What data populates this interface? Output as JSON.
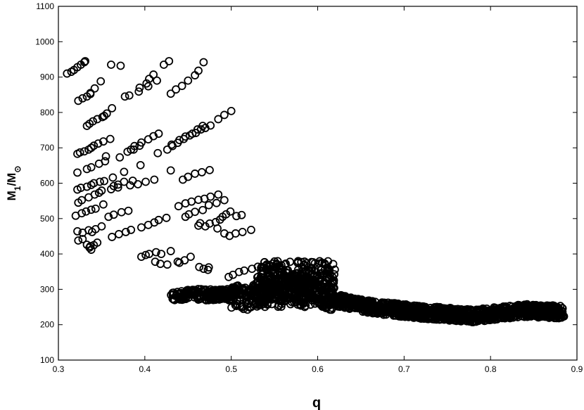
{
  "chart_data": {
    "type": "scatter",
    "title": "",
    "xlabel": "q",
    "ylabel": {
      "main": "M",
      "sub1": "1",
      "slash": "/M",
      "sub2": "⊙"
    },
    "xlim": [
      0.3,
      0.9
    ],
    "ylim": [
      100,
      1100
    ],
    "x_ticks": [
      0.3,
      0.4,
      0.5,
      0.6,
      0.7,
      0.8,
      0.9
    ],
    "x_tick_labels": [
      "0.3",
      "0.4",
      "0.5",
      "0.6",
      "0.7",
      "0.8",
      "0.9"
    ],
    "y_ticks": [
      100,
      200,
      300,
      400,
      500,
      600,
      700,
      800,
      900,
      1000,
      1100
    ],
    "y_tick_labels": [
      "100",
      "200",
      "300",
      "400",
      "500",
      "600",
      "700",
      "800",
      "900",
      "1000",
      "1100"
    ],
    "grid": false,
    "legend": "none",
    "marker": "open-circle",
    "marker_color": "#000000",
    "series": [
      {
        "values_x": [
          0.31,
          0.315,
          0.318,
          0.322,
          0.326,
          0.33,
          0.331,
          0.337,
          0.349,
          0.361,
          0.372,
          0.394,
          0.402,
          0.405,
          0.41,
          0.422,
          0.428,
          0.458,
          0.462,
          0.468,
          0.323,
          0.328,
          0.333,
          0.337,
          0.342,
          0.353,
          0.362,
          0.377,
          0.382,
          0.393,
          0.404,
          0.414,
          0.43,
          0.436,
          0.443,
          0.45,
          0.47,
          0.476,
          0.485,
          0.492,
          0.5,
          0.333,
          0.336,
          0.34,
          0.345,
          0.351,
          0.356,
          0.384,
          0.388,
          0.396,
          0.404,
          0.41,
          0.416,
          0.431,
          0.44,
          0.447,
          0.455,
          0.461,
          0.467,
          0.322,
          0.325,
          0.33,
          0.335,
          0.338,
          0.341,
          0.346,
          0.352,
          0.36,
          0.371,
          0.38,
          0.387,
          0.394,
          0.415,
          0.426,
          0.432,
          0.438,
          0.445,
          0.452,
          0.459,
          0.465,
          0.322,
          0.333,
          0.338,
          0.347,
          0.354,
          0.355,
          0.364,
          0.369,
          0.376,
          0.395,
          0.43,
          0.444,
          0.45,
          0.458,
          0.466,
          0.475,
          0.322,
          0.326,
          0.333,
          0.338,
          0.341,
          0.348,
          0.353,
          0.363,
          0.376,
          0.383,
          0.392,
          0.401,
          0.411,
          0.439,
          0.447,
          0.454,
          0.462,
          0.469,
          0.476,
          0.485,
          0.323,
          0.327,
          0.335,
          0.342,
          0.347,
          0.35,
          0.361,
          0.369,
          0.386,
          0.447,
          0.451,
          0.458,
          0.467,
          0.474,
          0.483,
          0.492,
          0.32,
          0.327,
          0.332,
          0.338,
          0.343,
          0.352,
          0.358,
          0.364,
          0.373,
          0.381,
          0.322,
          0.328,
          0.335,
          0.339,
          0.343,
          0.35,
          0.362,
          0.37,
          0.378,
          0.384,
          0.396,
          0.404,
          0.411,
          0.416,
          0.425,
          0.462,
          0.482,
          0.487,
          0.49,
          0.494,
          0.499,
          0.506,
          0.512,
          0.464,
          0.47,
          0.475,
          0.484,
          0.492,
          0.498,
          0.505,
          0.513,
          0.523,
          0.323,
          0.328,
          0.333,
          0.337,
          0.341,
          0.345,
          0.338,
          0.336,
          0.396,
          0.401,
          0.405,
          0.413,
          0.419,
          0.43,
          0.438,
          0.446,
          0.453,
          0.463,
          0.468,
          0.412,
          0.418,
          0.426,
          0.44,
          0.473,
          0.474,
          0.497,
          0.502,
          0.509,
          0.515,
          0.524,
          0.538,
          0.548,
          0.558
        ],
        "values_y": [
          910,
          915,
          920,
          928,
          935,
          942,
          945,
          855,
          888,
          935,
          932,
          870,
          882,
          895,
          907,
          935,
          945,
          905,
          918,
          942,
          833,
          840,
          845,
          852,
          868,
          790,
          812,
          845,
          848,
          859,
          874,
          890,
          853,
          865,
          875,
          890,
          756,
          763,
          781,
          793,
          804,
          762,
          768,
          775,
          781,
          787,
          797,
          695,
          705,
          715,
          724,
          733,
          740,
          709,
          722,
          732,
          740,
          752,
          762,
          683,
          687,
          690,
          695,
          700,
          706,
          712,
          718,
          725,
          673,
          689,
          695,
          706,
          685,
          695,
          705,
          714,
          725,
          735,
          742,
          752,
          630,
          640,
          645,
          655,
          662,
          676,
          592,
          596,
          604,
          651,
          636,
          610,
          618,
          627,
          631,
          637,
          582,
          587,
          590,
          595,
          600,
          604,
          606,
          616,
          632,
          594,
          597,
          604,
          610,
          535,
          543,
          548,
          553,
          556,
          562,
          568,
          545,
          552,
          560,
          568,
          573,
          579,
          583,
          588,
          607,
          505,
          512,
          519,
          524,
          538,
          544,
          552,
          508,
          515,
          520,
          525,
          528,
          540,
          505,
          511,
          518,
          522,
          464,
          460,
          467,
          462,
          470,
          478,
          448,
          456,
          462,
          468,
          475,
          482,
          489,
          496,
          502,
          480,
          490,
          497,
          505,
          512,
          520,
          507,
          510,
          487,
          478,
          486,
          472,
          458,
          451,
          458,
          462,
          468,
          438,
          442,
          426,
          422,
          425,
          432,
          412,
          418,
          392,
          397,
          400,
          405,
          400,
          408,
          378,
          382,
          392,
          363,
          358,
          378,
          372,
          370,
          375,
          355,
          362,
          335,
          341,
          349,
          353,
          358,
          361,
          365,
          368
        ]
      },
      {
        "cloud": [
          {
            "x": 0.5,
            "y": 280
          },
          {
            "x": 0.52,
            "y": 275
          },
          {
            "x": 0.54,
            "y": 295
          },
          {
            "x": 0.56,
            "y": 300
          },
          {
            "x": 0.58,
            "y": 310
          },
          {
            "x": 0.6,
            "y": 290
          },
          {
            "x": 0.62,
            "y": 270
          },
          {
            "x": 0.64,
            "y": 260
          },
          {
            "x": 0.66,
            "y": 250
          },
          {
            "x": 0.68,
            "y": 245
          },
          {
            "x": 0.7,
            "y": 240
          },
          {
            "x": 0.72,
            "y": 235
          },
          {
            "x": 0.74,
            "y": 232
          },
          {
            "x": 0.76,
            "y": 228
          },
          {
            "x": 0.78,
            "y": 225
          },
          {
            "x": 0.8,
            "y": 230
          },
          {
            "x": 0.82,
            "y": 235
          },
          {
            "x": 0.84,
            "y": 240
          },
          {
            "x": 0.86,
            "y": 238
          },
          {
            "x": 0.88,
            "y": 236
          }
        ]
      }
    ]
  },
  "layout": {
    "x_axis_label_text": "q"
  }
}
